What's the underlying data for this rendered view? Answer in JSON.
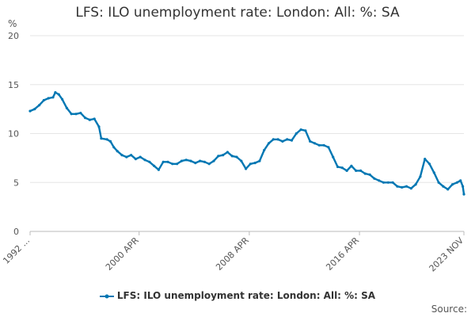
{
  "chart_data": {
    "type": "line",
    "title": "LFS: ILO unemployment rate: London: All: %: SA",
    "ylabel": "%",
    "xlabel": "",
    "ylim": [
      0,
      20
    ],
    "yticks": [
      0,
      5,
      10,
      15,
      20
    ],
    "xlim": [
      "1992 MAY",
      "2023 NOV"
    ],
    "xticks": [
      "1992 ...",
      "2000 APR",
      "2008 APR",
      "2016 APR",
      "2023 NOV"
    ],
    "grid": true,
    "legend_position": "bottom",
    "series": [
      {
        "name": "LFS: ILO unemployment rate: London: All: %: SA",
        "color": "#0077b3",
        "points": [
          [
            "1992-05",
            12.3
          ],
          [
            "1992-09",
            12.5
          ],
          [
            "1993-01",
            12.9
          ],
          [
            "1993-05",
            13.4
          ],
          [
            "1993-09",
            13.6
          ],
          [
            "1994-01",
            13.7
          ],
          [
            "1994-03",
            14.2
          ],
          [
            "1994-06",
            14.0
          ],
          [
            "1994-09",
            13.5
          ],
          [
            "1995-01",
            12.6
          ],
          [
            "1995-05",
            12.0
          ],
          [
            "1995-09",
            12.0
          ],
          [
            "1996-01",
            12.1
          ],
          [
            "1996-05",
            11.6
          ],
          [
            "1996-09",
            11.4
          ],
          [
            "1997-01",
            11.5
          ],
          [
            "1997-05",
            10.7
          ],
          [
            "1997-07",
            9.5
          ],
          [
            "1997-12",
            9.4
          ],
          [
            "1998-03",
            9.2
          ],
          [
            "1998-06",
            8.6
          ],
          [
            "1998-09",
            8.2
          ],
          [
            "1999-01",
            7.8
          ],
          [
            "1999-05",
            7.6
          ],
          [
            "1999-09",
            7.8
          ],
          [
            "2000-01",
            7.4
          ],
          [
            "2000-05",
            7.6
          ],
          [
            "2000-09",
            7.3
          ],
          [
            "2001-01",
            7.1
          ],
          [
            "2001-05",
            6.7
          ],
          [
            "2001-09",
            6.3
          ],
          [
            "2002-01",
            7.1
          ],
          [
            "2002-05",
            7.1
          ],
          [
            "2002-09",
            6.9
          ],
          [
            "2003-01",
            6.9
          ],
          [
            "2003-05",
            7.2
          ],
          [
            "2003-09",
            7.3
          ],
          [
            "2004-01",
            7.2
          ],
          [
            "2004-05",
            7.0
          ],
          [
            "2004-09",
            7.2
          ],
          [
            "2005-01",
            7.1
          ],
          [
            "2005-05",
            6.9
          ],
          [
            "2005-09",
            7.2
          ],
          [
            "2006-01",
            7.7
          ],
          [
            "2006-05",
            7.8
          ],
          [
            "2006-09",
            8.1
          ],
          [
            "2007-01",
            7.7
          ],
          [
            "2007-05",
            7.6
          ],
          [
            "2007-09",
            7.2
          ],
          [
            "2008-01",
            6.4
          ],
          [
            "2008-05",
            6.9
          ],
          [
            "2008-09",
            7.0
          ],
          [
            "2009-01",
            7.2
          ],
          [
            "2009-05",
            8.3
          ],
          [
            "2009-09",
            9.0
          ],
          [
            "2010-01",
            9.4
          ],
          [
            "2010-05",
            9.4
          ],
          [
            "2010-09",
            9.2
          ],
          [
            "2011-01",
            9.4
          ],
          [
            "2011-05",
            9.3
          ],
          [
            "2011-09",
            10.0
          ],
          [
            "2012-01",
            10.4
          ],
          [
            "2012-05",
            10.3
          ],
          [
            "2012-09",
            9.2
          ],
          [
            "2013-01",
            9.0
          ],
          [
            "2013-05",
            8.8
          ],
          [
            "2013-09",
            8.8
          ],
          [
            "2014-01",
            8.6
          ],
          [
            "2014-05",
            7.6
          ],
          [
            "2014-09",
            6.6
          ],
          [
            "2015-01",
            6.5
          ],
          [
            "2015-05",
            6.2
          ],
          [
            "2015-09",
            6.7
          ],
          [
            "2016-01",
            6.2
          ],
          [
            "2016-05",
            6.2
          ],
          [
            "2016-09",
            5.9
          ],
          [
            "2017-01",
            5.8
          ],
          [
            "2017-05",
            5.4
          ],
          [
            "2017-09",
            5.2
          ],
          [
            "2018-01",
            5.0
          ],
          [
            "2018-05",
            5.0
          ],
          [
            "2018-09",
            5.0
          ],
          [
            "2019-01",
            4.6
          ],
          [
            "2019-05",
            4.5
          ],
          [
            "2019-09",
            4.6
          ],
          [
            "2020-01",
            4.4
          ],
          [
            "2020-05",
            4.8
          ],
          [
            "2020-09",
            5.6
          ],
          [
            "2021-01",
            7.4
          ],
          [
            "2021-05",
            6.9
          ],
          [
            "2021-09",
            6.0
          ],
          [
            "2022-01",
            5.0
          ],
          [
            "2022-05",
            4.6
          ],
          [
            "2022-09",
            4.3
          ],
          [
            "2023-01",
            4.8
          ],
          [
            "2023-05",
            5.0
          ],
          [
            "2023-08",
            5.2
          ],
          [
            "2023-10",
            4.6
          ],
          [
            "2023-11",
            3.8
          ]
        ]
      }
    ]
  },
  "legend": {
    "label": "LFS: ILO unemployment rate: London: All: %: SA"
  },
  "footer": {
    "source": "Source:"
  }
}
